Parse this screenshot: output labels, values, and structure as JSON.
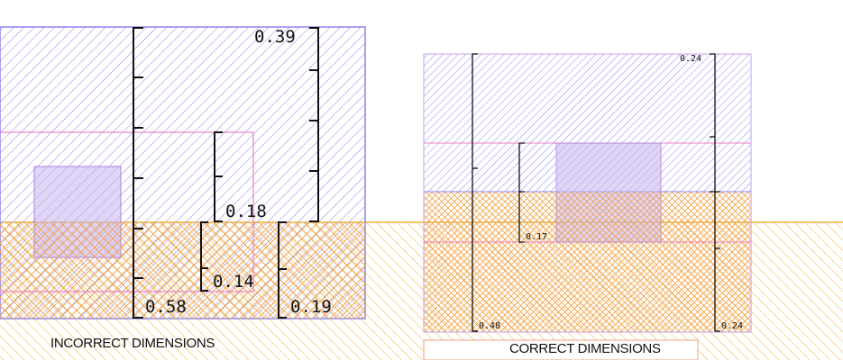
{
  "colors": {
    "layer_blue": "#8c84f0",
    "layer_orange": "#f2b13a",
    "outline_pink": "#ee7fc0",
    "via_fill": "#c9b3ef",
    "bracket": "#111111"
  },
  "panels": {
    "incorrect": {
      "caption": "INCORRECT DIMENSIONS",
      "dims": {
        "top": "0.39",
        "upper_mid": "0.18",
        "lower_mid": "0.14",
        "left_total": "0.58",
        "right_low": "0.19"
      }
    },
    "correct": {
      "caption": "CORRECT DIMENSIONS",
      "dims": {
        "top_right": "0.24",
        "mid": "0.17",
        "left_total": "0.48",
        "right_low": "0.24"
      }
    }
  }
}
